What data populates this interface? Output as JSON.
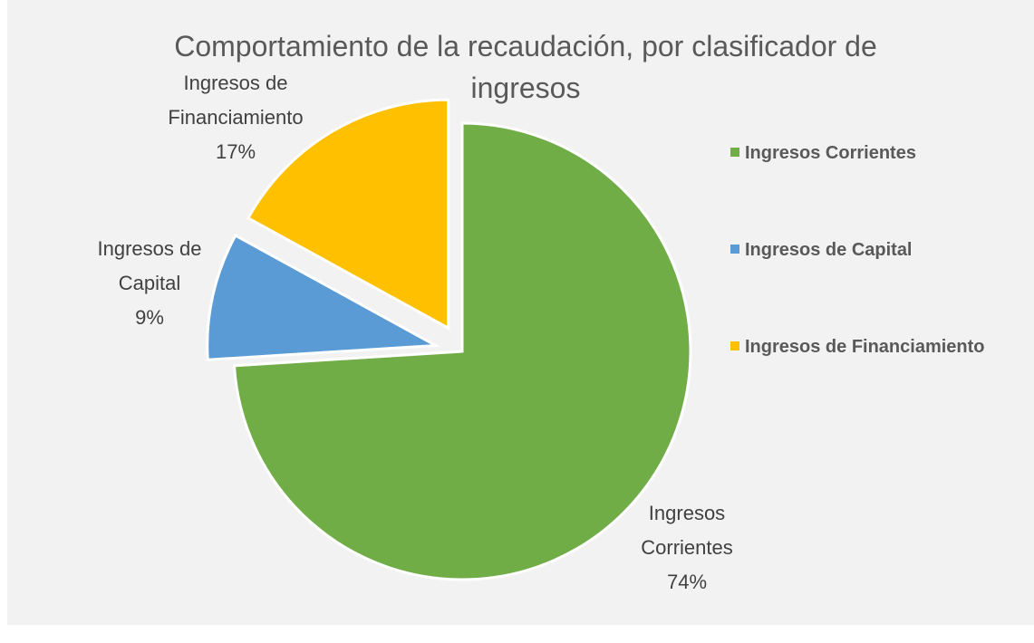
{
  "chart_data": {
    "type": "pie",
    "title": "Comportamiento de la recaudación, por clasificador de ingresos",
    "categories": [
      "Ingresos Corrientes",
      "Ingresos de Capital",
      "Ingresos de Financiamiento"
    ],
    "values": [
      74,
      9,
      17
    ],
    "value_labels": [
      "74%",
      "9%",
      "17%"
    ],
    "colors": [
      "#70ad47",
      "#5b9bd5",
      "#ffc000"
    ],
    "legend": "right"
  }
}
